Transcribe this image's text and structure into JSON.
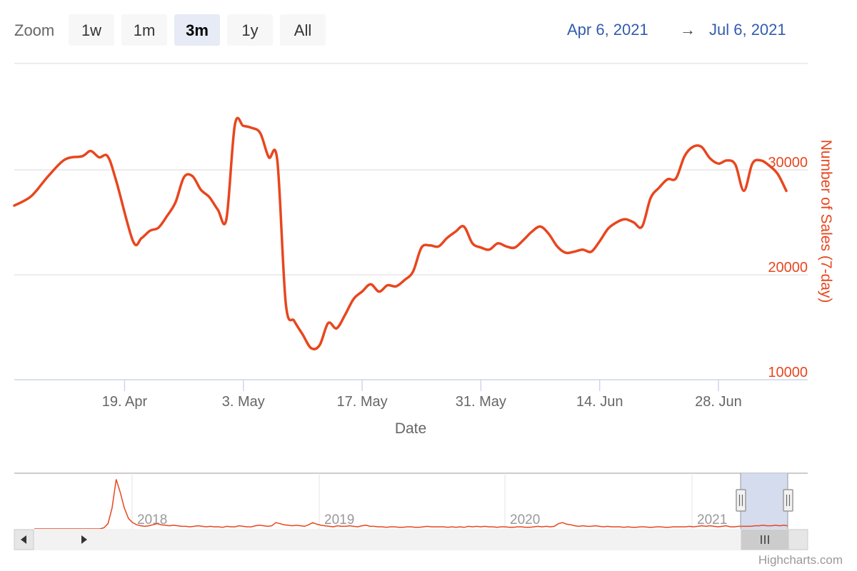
{
  "range_selector": {
    "zoom_label": "Zoom",
    "buttons": [
      "1w",
      "1m",
      "3m",
      "1y",
      "All"
    ],
    "selected": "3m",
    "from_date": "Apr 6, 2021",
    "arrow": "→",
    "to_date": "Jul 6, 2021"
  },
  "colors": {
    "series": "#e8461e",
    "grid": "#e6e6e6",
    "navigator_mask": "#ccd6eb"
  },
  "chart_data": {
    "type": "line",
    "xlabel": "Date",
    "ylabel": "Number of Sales (7-day)",
    "ylim": [
      10000,
      30000
    ],
    "y_ticks": [
      "10000",
      "20000",
      "30000"
    ],
    "x_ticks": [
      "19. Apr",
      "3. May",
      "17. May",
      "31. May",
      "14. Jun",
      "28. Jun"
    ],
    "x_tick_dates": [
      "2021-04-19",
      "2021-05-03",
      "2021-05-17",
      "2021-05-31",
      "2021-06-14",
      "2021-06-28"
    ],
    "x_range": [
      "2021-04-06",
      "2021-07-06"
    ],
    "grid": true,
    "series": [
      {
        "x": [
          "2021-04-06",
          "2021-04-08",
          "2021-04-10",
          "2021-04-12",
          "2021-04-14",
          "2021-04-15",
          "2021-04-16",
          "2021-04-17",
          "2021-04-18",
          "2021-04-20",
          "2021-04-21",
          "2021-04-22",
          "2021-04-23",
          "2021-04-24",
          "2021-04-25",
          "2021-04-26",
          "2021-04-27",
          "2021-04-28",
          "2021-04-29",
          "2021-04-30",
          "2021-05-01",
          "2021-05-02",
          "2021-05-03",
          "2021-05-04",
          "2021-05-05",
          "2021-05-06",
          "2021-05-07",
          "2021-05-08",
          "2021-05-09",
          "2021-05-10",
          "2021-05-11",
          "2021-05-12",
          "2021-05-13",
          "2021-05-14",
          "2021-05-15",
          "2021-05-16",
          "2021-05-17",
          "2021-05-18",
          "2021-05-19",
          "2021-05-20",
          "2021-05-21",
          "2021-05-22",
          "2021-05-23",
          "2021-05-24",
          "2021-05-25",
          "2021-05-26",
          "2021-05-27",
          "2021-05-28",
          "2021-05-29",
          "2021-05-30",
          "2021-05-31",
          "2021-06-01",
          "2021-06-02",
          "2021-06-03",
          "2021-06-04",
          "2021-06-05",
          "2021-06-06",
          "2021-06-07",
          "2021-06-08",
          "2021-06-09",
          "2021-06-10",
          "2021-06-11",
          "2021-06-12",
          "2021-06-13",
          "2021-06-14",
          "2021-06-15",
          "2021-06-16",
          "2021-06-17",
          "2021-06-18",
          "2021-06-19",
          "2021-06-20",
          "2021-06-21",
          "2021-06-22",
          "2021-06-23",
          "2021-06-24",
          "2021-06-25",
          "2021-06-26",
          "2021-06-27",
          "2021-06-28",
          "2021-06-29",
          "2021-06-30",
          "2021-07-01",
          "2021-07-02",
          "2021-07-03",
          "2021-07-04",
          "2021-07-05",
          "2021-07-06"
        ],
        "values": [
          26600,
          27500,
          29400,
          31000,
          31300,
          31800,
          31200,
          31300,
          29000,
          23200,
          23500,
          24200,
          24500,
          25600,
          26900,
          29300,
          29400,
          28100,
          27400,
          26200,
          25300,
          34300,
          34200,
          34000,
          33500,
          31200,
          30900,
          17300,
          15600,
          14300,
          13000,
          13300,
          15400,
          14900,
          16200,
          17700,
          18400,
          19100,
          18400,
          19000,
          18900,
          19500,
          20300,
          22600,
          22800,
          22700,
          23500,
          24100,
          24600,
          23000,
          22600,
          22400,
          23000,
          22700,
          22600,
          23300,
          24100,
          24600,
          23900,
          22700,
          22100,
          22200,
          22400,
          22200,
          23200,
          24400,
          25000,
          25300,
          25000,
          24600,
          27300,
          28300,
          29100,
          29200,
          31300,
          32200,
          32200,
          31100,
          30600,
          30900,
          30500,
          28000,
          30600,
          30900,
          30400,
          29600,
          28000
        ]
      }
    ]
  },
  "navigator": {
    "years": [
      "2018",
      "2019",
      "2020",
      "2021"
    ],
    "overview_values": [
      0,
      0,
      0,
      0,
      0,
      0,
      0,
      0,
      0,
      0,
      0,
      0,
      0,
      0,
      0,
      0,
      0,
      2,
      10,
      40,
      95,
      70,
      40,
      20,
      12,
      8,
      6,
      5,
      6,
      8,
      10,
      8,
      7,
      6,
      7,
      6,
      5,
      5,
      4,
      5,
      6,
      5,
      4,
      5,
      4,
      4,
      3,
      5,
      4,
      4,
      6,
      5,
      4,
      4,
      6,
      7,
      6,
      5,
      6,
      12,
      10,
      8,
      7,
      6,
      7,
      6,
      5,
      8,
      12,
      9,
      7,
      6,
      5,
      4,
      6,
      5,
      5,
      6,
      5,
      4,
      6,
      7,
      5,
      5,
      4,
      4,
      3,
      4,
      4,
      3,
      3,
      4,
      4,
      3,
      3,
      4,
      5,
      4,
      4,
      4,
      4,
      3,
      4,
      3,
      4,
      3,
      5,
      4,
      5,
      4,
      5,
      4,
      4,
      3,
      4,
      4,
      3,
      3,
      4,
      4,
      3,
      3,
      4,
      5,
      4,
      5,
      4,
      5,
      10,
      12,
      9,
      8,
      6,
      5,
      6,
      5,
      5,
      6,
      5,
      4,
      5,
      4,
      4,
      4,
      3,
      4,
      3,
      3,
      4,
      4,
      3,
      3,
      4,
      4,
      3,
      3,
      4,
      4,
      4,
      4,
      5,
      4,
      5,
      6,
      5,
      6,
      5,
      4,
      5,
      6,
      4,
      4,
      5,
      5,
      5,
      5,
      6,
      6,
      7,
      6,
      6,
      7,
      6,
      7,
      6
    ]
  },
  "credits": "Highcharts.com"
}
